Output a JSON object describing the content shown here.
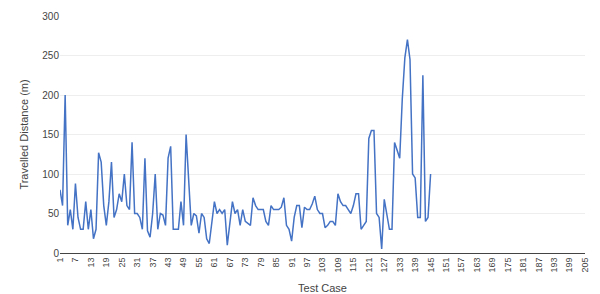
{
  "chart_data": {
    "type": "line",
    "xlabel": "Test Case",
    "ylabel": "Travelled Distance (m)",
    "color": "#4472c4",
    "grid": "y",
    "xlim": [
      1,
      205
    ],
    "ylim": [
      0,
      300
    ],
    "xticks": [
      1,
      7,
      13,
      19,
      25,
      31,
      37,
      43,
      49,
      55,
      61,
      67,
      73,
      79,
      85,
      91,
      97,
      103,
      109,
      115,
      121,
      127,
      133,
      139,
      145,
      151,
      157,
      163,
      169,
      175,
      181,
      187,
      193,
      199,
      205
    ],
    "yticks": [
      0,
      50,
      100,
      150,
      200,
      250,
      300
    ],
    "x": [
      1,
      2,
      3,
      4,
      5,
      6,
      7,
      8,
      9,
      10,
      11,
      12,
      13,
      14,
      15,
      16,
      17,
      18,
      19,
      20,
      21,
      22,
      23,
      24,
      25,
      26,
      27,
      28,
      29,
      30,
      31,
      32,
      33,
      34,
      35,
      36,
      37,
      38,
      39,
      40,
      41,
      42,
      43,
      44,
      45,
      46,
      47,
      48,
      49,
      50,
      51,
      52,
      53,
      54,
      55,
      56,
      57,
      58,
      59,
      60,
      61,
      62,
      63,
      64,
      65,
      66,
      67,
      68,
      69,
      70,
      71,
      72,
      73,
      74,
      75,
      76,
      77,
      78,
      79,
      80,
      81,
      82,
      83,
      84,
      85,
      86,
      87,
      88,
      89,
      90,
      91,
      92,
      93,
      94,
      95,
      96,
      97,
      98,
      99,
      100,
      101,
      102,
      103,
      104,
      105,
      106,
      107,
      108,
      109,
      110,
      111,
      112,
      113,
      114,
      115,
      116,
      117,
      118,
      119,
      120,
      121,
      122,
      123,
      124,
      125,
      126,
      127,
      128,
      129,
      130,
      131,
      132,
      133,
      134,
      135,
      136,
      137,
      138,
      139,
      140,
      141,
      142,
      143,
      144,
      145
    ],
    "values": [
      80,
      60,
      200,
      35,
      55,
      30,
      88,
      45,
      30,
      30,
      65,
      30,
      55,
      18,
      30,
      127,
      115,
      60,
      35,
      65,
      115,
      45,
      55,
      75,
      65,
      100,
      60,
      55,
      140,
      50,
      50,
      45,
      30,
      120,
      28,
      20,
      50,
      100,
      30,
      50,
      48,
      35,
      120,
      135,
      30,
      30,
      30,
      65,
      35,
      150,
      85,
      35,
      50,
      47,
      25,
      50,
      45,
      18,
      12,
      40,
      65,
      50,
      55,
      50,
      55,
      10,
      40,
      65,
      50,
      55,
      35,
      55,
      40,
      38,
      35,
      70,
      60,
      55,
      55,
      55,
      40,
      35,
      60,
      55,
      55,
      55,
      58,
      70,
      35,
      30,
      15,
      45,
      60,
      60,
      32,
      58,
      55,
      55,
      62,
      72,
      55,
      50,
      50,
      32,
      35,
      40,
      40,
      35,
      75,
      65,
      60,
      60,
      55,
      50,
      60,
      75,
      75,
      30,
      35,
      40,
      145,
      155,
      155,
      50,
      45,
      5,
      68,
      50,
      30,
      30,
      140,
      130,
      120,
      195,
      247,
      270,
      245,
      100,
      95,
      45,
      45,
      225,
      40,
      45,
      100
    ]
  }
}
